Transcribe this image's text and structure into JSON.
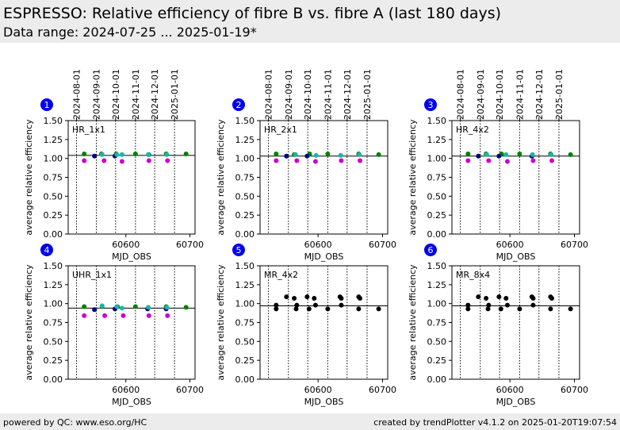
{
  "header": {
    "title": "ESPRESSO: Relative efficiency of fibre B vs. fibre A (last 180 days)",
    "subtitle": "Data range: 2024-07-25 ... 2025-01-19*"
  },
  "footer": {
    "left": "powered by QC: www.eso.org/HC",
    "right": "created by trendPlotter v4.1.2 on 2025-01-20T19:07:54"
  },
  "colors": {
    "header_bg": "#ececec",
    "badge": "#0000ee",
    "green": "#008000",
    "navy": "#000080",
    "magenta": "#cc00cc",
    "cyan": "#20b2aa",
    "black": "#000000"
  },
  "chart_data": [
    {
      "type": "scatter",
      "panel": "1",
      "label": "HR_1x1",
      "xlabel": "MJD_OBS",
      "ylabel": "average relative efficiency",
      "xlim": [
        60510,
        60708
      ],
      "ylim": [
        0,
        1.5
      ],
      "xticks": [
        60600,
        60700
      ],
      "yticks": [
        0.0,
        0.25,
        0.5,
        0.75,
        1.0,
        1.25,
        1.5
      ],
      "top_ticks": [
        "2024-08-01",
        "2024-09-01",
        "2024-10-01",
        "2024-11-01",
        "2024-12-01",
        "2025-01-01"
      ],
      "month_lines": [
        60523,
        60554,
        60584,
        60615,
        60645,
        60676
      ],
      "reference": 1.04,
      "series": [
        {
          "color": "green",
          "x": [
            60535,
            60562,
            60585,
            60615,
            60636,
            60663,
            60694
          ],
          "y": [
            1.06,
            1.06,
            1.06,
            1.06,
            1.05,
            1.06,
            1.06
          ]
        },
        {
          "color": "navy",
          "x": [
            60551,
            60583
          ],
          "y": [
            1.03,
            1.03
          ]
        },
        {
          "color": "magenta",
          "x": [
            60535,
            60566,
            60594,
            60636,
            60665
          ],
          "y": [
            0.97,
            0.97,
            0.96,
            0.97,
            0.97
          ]
        },
        {
          "color": "cyan",
          "x": [
            60563,
            60586,
            60594,
            60635,
            60664
          ],
          "y": [
            1.05,
            1.05,
            1.05,
            1.05,
            1.05
          ]
        }
      ]
    },
    {
      "type": "scatter",
      "panel": "2",
      "label": "HR_2x1",
      "xlabel": "MJD_OBS",
      "ylabel": "average relative efficiency",
      "xlim": [
        60510,
        60708
      ],
      "ylim": [
        0,
        1.5
      ],
      "xticks": [
        60600,
        60700
      ],
      "yticks": [
        0.0,
        0.25,
        0.5,
        0.75,
        1.0,
        1.25,
        1.5
      ],
      "top_ticks": [
        "2024-08-01",
        "2024-09-01",
        "2024-10-01",
        "2024-11-01",
        "2024-12-01",
        "2025-01-01"
      ],
      "month_lines": [
        60523,
        60554,
        60584,
        60615,
        60645,
        60676
      ],
      "reference": 1.03,
      "series": [
        {
          "color": "green",
          "x": [
            60535,
            60563,
            60587,
            60615,
            60663,
            60694
          ],
          "y": [
            1.06,
            1.05,
            1.06,
            1.06,
            1.06,
            1.05
          ]
        },
        {
          "color": "navy",
          "x": [
            60551,
            60583
          ],
          "y": [
            1.03,
            1.03
          ]
        },
        {
          "color": "magenta",
          "x": [
            60535,
            60567,
            60596,
            60636,
            60665
          ],
          "y": [
            0.97,
            0.97,
            0.96,
            0.97,
            0.97
          ]
        },
        {
          "color": "cyan",
          "x": [
            60565,
            60597,
            60635,
            60664
          ],
          "y": [
            1.05,
            1.04,
            1.04,
            1.05
          ]
        }
      ]
    },
    {
      "type": "scatter",
      "panel": "3",
      "label": "HR_4x2",
      "xlabel": "MJD_OBS",
      "ylabel": "average relative efficiency",
      "xlim": [
        60510,
        60708
      ],
      "ylim": [
        0,
        1.5
      ],
      "xticks": [
        60600,
        60700
      ],
      "yticks": [
        0.0,
        0.25,
        0.5,
        0.75,
        1.0,
        1.25,
        1.5
      ],
      "top_ticks": [
        "2024-08-01",
        "2024-09-01",
        "2024-10-01",
        "2024-11-01",
        "2024-12-01",
        "2025-01-01"
      ],
      "month_lines": [
        60523,
        60554,
        60584,
        60615,
        60645,
        60676
      ],
      "reference": 1.03,
      "series": [
        {
          "color": "green",
          "x": [
            60535,
            60563,
            60587,
            60615,
            60663,
            60694
          ],
          "y": [
            1.06,
            1.06,
            1.06,
            1.06,
            1.06,
            1.05
          ]
        },
        {
          "color": "navy",
          "x": [
            60551,
            60583,
            60634
          ],
          "y": [
            1.03,
            1.03,
            1.03
          ]
        },
        {
          "color": "magenta",
          "x": [
            60535,
            60567,
            60596,
            60636,
            60665
          ],
          "y": [
            0.97,
            0.97,
            0.96,
            0.97,
            0.97
          ]
        },
        {
          "color": "cyan",
          "x": [
            60564,
            60594,
            60635,
            60664
          ],
          "y": [
            1.05,
            1.05,
            1.05,
            1.05
          ]
        }
      ]
    },
    {
      "type": "scatter",
      "panel": "4",
      "label": "UHR_1x1",
      "xlabel": "MJD_OBS",
      "ylabel": "average relative efficiency",
      "xlim": [
        60510,
        60708
      ],
      "ylim": [
        0,
        1.5
      ],
      "xticks": [
        60600,
        60700
      ],
      "yticks": [
        0.0,
        0.25,
        0.5,
        0.75,
        1.0,
        1.25,
        1.5
      ],
      "top_ticks": [],
      "month_lines": [
        60523,
        60554,
        60584,
        60615,
        60645,
        60676
      ],
      "reference": 0.94,
      "series": [
        {
          "color": "green",
          "x": [
            60535,
            60563,
            60587,
            60615,
            60663,
            60694
          ],
          "y": [
            0.96,
            0.96,
            0.96,
            0.96,
            0.96,
            0.95
          ]
        },
        {
          "color": "navy",
          "x": [
            60551,
            60583,
            60634,
            60663
          ],
          "y": [
            0.92,
            0.93,
            0.93,
            0.93
          ]
        },
        {
          "color": "magenta",
          "x": [
            60535,
            60567,
            60596,
            60636,
            60665
          ],
          "y": [
            0.84,
            0.84,
            0.84,
            0.84,
            0.84
          ]
        },
        {
          "color": "cyan",
          "x": [
            60563,
            60586,
            60594,
            60635,
            60664
          ],
          "y": [
            0.97,
            0.96,
            0.94,
            0.95,
            0.95
          ]
        }
      ]
    },
    {
      "type": "scatter",
      "panel": "5",
      "label": "MR_4x2",
      "xlabel": "MJD_OBS",
      "ylabel": "average relative efficiency",
      "xlim": [
        60510,
        60708
      ],
      "ylim": [
        0,
        1.5
      ],
      "xticks": [
        60600,
        60700
      ],
      "yticks": [
        0.0,
        0.25,
        0.5,
        0.75,
        1.0,
        1.25,
        1.5
      ],
      "top_ticks": [],
      "month_lines": [
        60523,
        60554,
        60584,
        60615,
        60645,
        60676
      ],
      "reference": 0.97,
      "series": [
        {
          "color": "black",
          "x": [
            60535,
            60535,
            60551,
            60563,
            60566,
            60567,
            60583,
            60586,
            60594,
            60596,
            60615,
            60634,
            60636,
            60636,
            60663,
            60663,
            60665,
            60694
          ],
          "y": [
            0.98,
            0.93,
            1.09,
            1.07,
            0.93,
            0.98,
            1.09,
            0.93,
            1.07,
            0.98,
            0.93,
            1.09,
            1.07,
            0.98,
            1.09,
            0.93,
            1.07,
            0.93
          ]
        }
      ]
    },
    {
      "type": "scatter",
      "panel": "6",
      "label": "MR_8x4",
      "xlabel": "MJD_OBS",
      "ylabel": "average relative efficiency",
      "xlim": [
        60510,
        60708
      ],
      "ylim": [
        0,
        1.5
      ],
      "xticks": [
        60600,
        60700
      ],
      "yticks": [
        0.0,
        0.25,
        0.5,
        0.75,
        1.0,
        1.25,
        1.5
      ],
      "top_ticks": [],
      "month_lines": [
        60523,
        60554,
        60584,
        60615,
        60645,
        60676
      ],
      "reference": 0.97,
      "series": [
        {
          "color": "black",
          "x": [
            60535,
            60535,
            60551,
            60563,
            60566,
            60567,
            60583,
            60586,
            60594,
            60596,
            60615,
            60634,
            60636,
            60636,
            60663,
            60663,
            60665,
            60694
          ],
          "y": [
            0.98,
            0.93,
            1.09,
            1.07,
            0.93,
            0.98,
            1.09,
            0.93,
            1.07,
            0.98,
            0.93,
            1.09,
            1.07,
            0.98,
            1.09,
            0.93,
            1.07,
            0.93
          ]
        }
      ]
    }
  ]
}
